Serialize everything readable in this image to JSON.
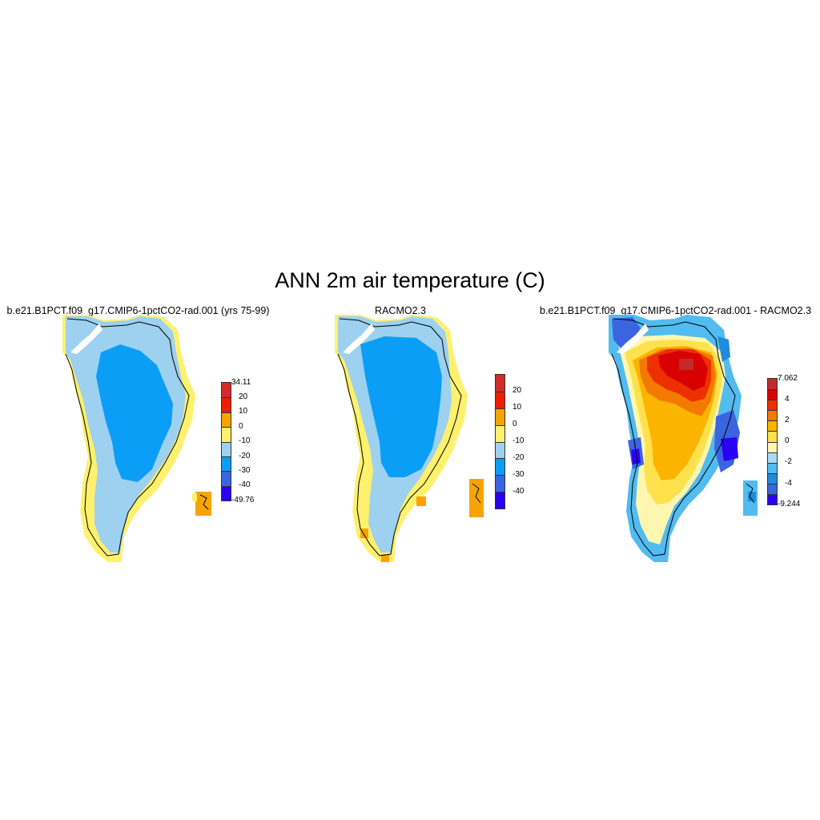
{
  "title": "ANN 2m air temperature (C)",
  "panels": [
    {
      "title": "b.e21.B1PCT.f09_g17.CMIP6-1pctCO2-rad.001 (yrs 75-99)",
      "colorbar": {
        "colors": [
          "#2a00f5",
          "#3b64e0",
          "#0b9ef7",
          "#9dd1ef",
          "#fff06e",
          "#f7a400",
          "#ee1c00",
          "#d42a2a"
        ],
        "labels": [
          "-49.76",
          "-40",
          "-30",
          "-20",
          "-10",
          "0",
          "10",
          "20",
          "34.11"
        ]
      }
    },
    {
      "title": "RACMO2.3",
      "colorbar": {
        "colors": [
          "#2a00f5",
          "#3b64e0",
          "#0b9ef7",
          "#9dd1ef",
          "#fff06e",
          "#f7a400",
          "#ee1c00",
          "#d42a2a"
        ],
        "labels": [
          "-40",
          "-30",
          "-20",
          "-10",
          "0",
          "10",
          "20"
        ]
      }
    },
    {
      "title": "b.e21.B1PCT.f09_g17.CMIP6-1pctCO2-rad.001 - RACMO2.3",
      "colorbar": {
        "colors": [
          "#2a00f5",
          "#3b64e0",
          "#1e8be0",
          "#52bbf0",
          "#a6dcf5",
          "#fff7b0",
          "#ffe14e",
          "#fbb400",
          "#f37a00",
          "#ee3000",
          "#d80000",
          "#c42a2a"
        ],
        "labels": [
          "-9.244",
          "-4",
          "-2",
          "0",
          "2",
          "4",
          "7.062"
        ]
      }
    }
  ]
}
